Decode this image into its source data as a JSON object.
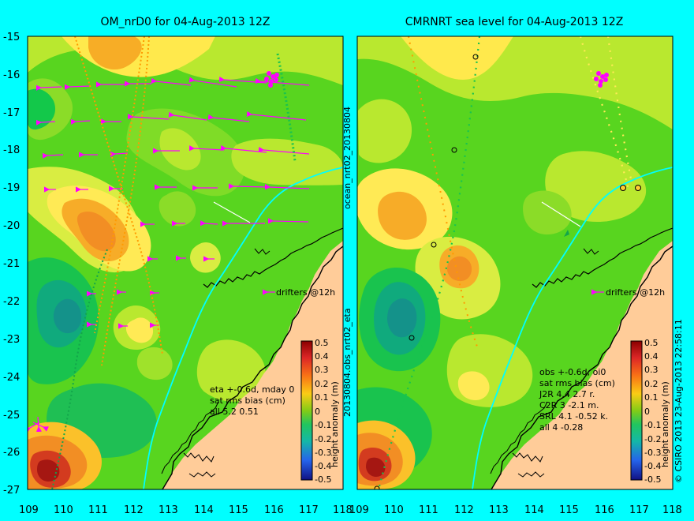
{
  "panels": {
    "left": {
      "title": "OM_nrD0 for 04-Aug-2013 12Z",
      "drifters_label": "drifters @12h",
      "stats_lines": [
        "eta +-0.6d, mday 0",
        "sat rms bias (cm)",
        "all 5.2 0.51"
      ]
    },
    "right": {
      "title": "CMRNRT sea level  for 04-Aug-2013 12Z",
      "drifters_label": "drifters @12h",
      "stats_lines": [
        "obs +-0.6d, oi0",
        "sat rms bias (cm)",
        "J2R   4.4  2.7  r.",
        "C2R    3  -2.1  m.",
        "SRL    4.1  -0.52  k.",
        "all    4  -0.28"
      ]
    }
  },
  "y_ticks": [
    "-15",
    "-16",
    "-17",
    "-18",
    "-19",
    "-20",
    "-21",
    "-22",
    "-23",
    "-24",
    "-25",
    "-26",
    "-27"
  ],
  "x_ticks": [
    "109",
    "110",
    "111",
    "112",
    "113",
    "114",
    "115",
    "116",
    "117",
    "118"
  ],
  "colorbar": {
    "label": "height anomaly (m)",
    "ticks": [
      "0.5",
      "0.4",
      "0.3",
      "0.2",
      "0.1",
      "0",
      "-0.1",
      "-0.2",
      "-0.3",
      "-0.4",
      "-0.5"
    ],
    "colors": [
      "#8b0000",
      "#c1121f",
      "#e63b15",
      "#f97316",
      "#fbbf24",
      "#fef08a",
      "#a3e635",
      "#4ade80",
      "#22c55e",
      "#14b8a6",
      "#0891b2",
      "#0c4a6e",
      "#1e1b8a"
    ]
  },
  "side_text": {
    "middle_vertical": "20130804.obs_nrt02_eta",
    "middle_vertical_top": "ocean_nrt02_20130804",
    "right_vertical": "© CSIRO 2013   23-Aug-2013 22:58:11"
  },
  "colors": {
    "background": "#00ffff",
    "land": "#ffcc99",
    "drifter": "#ff00ff",
    "coastline": "#000000",
    "river": "#00ffff"
  }
}
